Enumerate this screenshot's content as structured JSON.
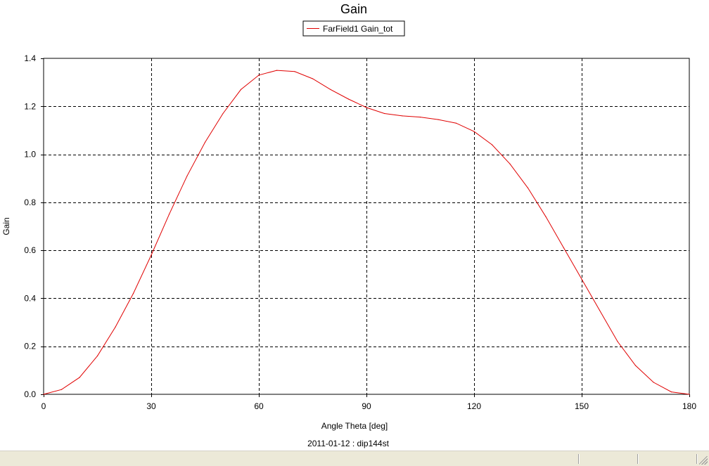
{
  "chart_data": {
    "type": "line",
    "title": "Gain",
    "xlabel": "Angle Theta [deg]",
    "ylabel": "Gain",
    "footer": "2011-01-12 : dip144st",
    "xlim": [
      0,
      180
    ],
    "ylim": [
      0,
      1.4
    ],
    "x_ticks": [
      "0",
      "30",
      "60",
      "90",
      "120",
      "150",
      "180"
    ],
    "y_ticks": [
      "0.0",
      "0.2",
      "0.4",
      "0.6",
      "0.8",
      "1.0",
      "1.2",
      "1.4"
    ],
    "x_tick_values": [
      0,
      30,
      60,
      90,
      120,
      150,
      180
    ],
    "y_tick_values": [
      0,
      0.2,
      0.4,
      0.6,
      0.8,
      1.0,
      1.2,
      1.4
    ],
    "grid": true,
    "legend_position": "top-center",
    "series": [
      {
        "name": "FarField1 Gain_tot",
        "color": "#e00000",
        "x": [
          0,
          5,
          10,
          15,
          20,
          25,
          30,
          35,
          40,
          45,
          50,
          55,
          60,
          65,
          70,
          75,
          80,
          85,
          90,
          95,
          100,
          105,
          110,
          115,
          120,
          125,
          130,
          135,
          140,
          145,
          150,
          155,
          160,
          165,
          170,
          175,
          180
        ],
        "y": [
          0.0,
          0.02,
          0.07,
          0.16,
          0.28,
          0.42,
          0.58,
          0.75,
          0.91,
          1.05,
          1.17,
          1.27,
          1.33,
          1.35,
          1.345,
          1.315,
          1.27,
          1.23,
          1.195,
          1.17,
          1.16,
          1.155,
          1.145,
          1.13,
          1.095,
          1.04,
          0.96,
          0.86,
          0.74,
          0.61,
          0.48,
          0.35,
          0.22,
          0.12,
          0.05,
          0.01,
          0.0
        ]
      }
    ]
  },
  "window": {
    "status_bar": ""
  }
}
